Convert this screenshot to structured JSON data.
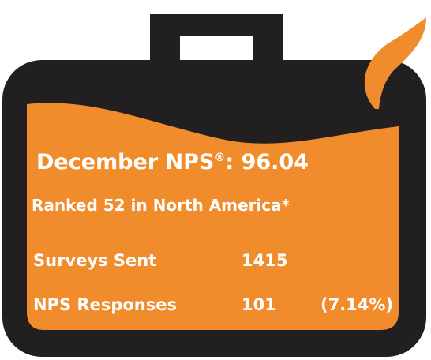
{
  "colors": {
    "case": "#221f20",
    "fill": "#f18c2d",
    "text": "#ffffff"
  },
  "icons": [
    "briefcase-shape",
    "liquid-drop-icon"
  ],
  "title": {
    "prefix": "December NPS",
    "mark": "®",
    "suffix": ": 96.04"
  },
  "rank": "Ranked 52 in North America*",
  "stats": [
    {
      "label": "Surveys Sent",
      "value": "1415",
      "extra": ""
    },
    {
      "label": "NPS Responses",
      "value": "101",
      "extra": "(7.14%)"
    }
  ]
}
